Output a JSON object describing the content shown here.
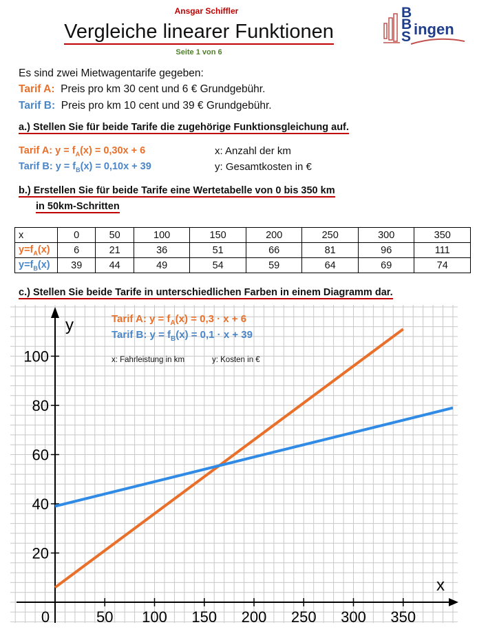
{
  "header": {
    "author": "Ansgar Schiffler",
    "title": "Vergleiche linearer Funktionen",
    "page": "Seite 1 von 6",
    "logo": {
      "b1": "B",
      "b2": "B",
      "s": "S",
      "ingen": "ingen"
    }
  },
  "intro": {
    "line1": "Es sind zwei Mietwagentarife gegeben:",
    "tarifA_label": "Tarif A:",
    "tarifA_text": "Preis pro km 30 cent und 6 € Grundgebühr.",
    "tarifB_label": "Tarif B:",
    "tarifB_text": "Preis pro km 10 cent und 39 € Grundgebühr."
  },
  "task_a": {
    "heading": "a.)  Stellen Sie für beide Tarife die zugehörige Funktionsgleichung auf.",
    "eqA_pre": "Tarif A: y = f",
    "eqA_sub": "A",
    "eqA_post": "(x) = 0,30x + 6",
    "eqB_pre": "Tarif B: y = f",
    "eqB_sub": "B",
    "eqB_post": "(x) = 0,10x + 39",
    "xdesc": "x: Anzahl der km",
    "ydesc": "y: Gesamtkosten in €"
  },
  "task_b": {
    "heading1": "b.) Erstellen Sie für beide Tarife eine Wertetabelle von 0 bis 350 km",
    "heading2": "in 50km-Schritten"
  },
  "table": {
    "row_x": {
      "label": "x",
      "values": [
        "0",
        "50",
        "100",
        "150",
        "200",
        "250",
        "300",
        "350"
      ]
    },
    "row_a": {
      "label_pre": "y=f",
      "label_sub": "A",
      "label_post": "(x)",
      "values": [
        "6",
        "21",
        "36",
        "51",
        "66",
        "81",
        "96",
        "111"
      ]
    },
    "row_b": {
      "label_pre": "y=f",
      "label_sub": "B",
      "label_post": "(x)",
      "values": [
        "39",
        "44",
        "49",
        "54",
        "59",
        "64",
        "69",
        "74"
      ]
    }
  },
  "task_c": {
    "heading": "c.) Stellen Sie beide Tarife in unterschiedlichen Farben in einem Diagramm dar."
  },
  "chart_data": {
    "type": "line",
    "xlabel": "x",
    "ylabel": "y",
    "xlim": [
      0,
      400
    ],
    "ylim": [
      0,
      115
    ],
    "xticks": [
      0,
      50,
      100,
      150,
      200,
      250,
      300,
      350
    ],
    "yticks": [
      20,
      40,
      60,
      80,
      100
    ],
    "grid": true,
    "legend_a_pre": "Tarif A: y = f",
    "legend_a_sub": "A",
    "legend_a_post": "(x) = 0,3 · x + 6",
    "legend_b_pre": "Tarif B: y = f",
    "legend_b_sub": "B",
    "legend_b_post": "(x) = 0,1 · x + 39",
    "note_x": "x: Fahrleistung in km",
    "note_y": "y: Kosten in €",
    "series": [
      {
        "name": "Tarif A",
        "color": "#e8702a",
        "x": [
          0,
          350
        ],
        "y": [
          6,
          111
        ]
      },
      {
        "name": "Tarif B",
        "color": "#2f8be6",
        "x": [
          0,
          400
        ],
        "y": [
          39,
          79
        ]
      }
    ]
  }
}
